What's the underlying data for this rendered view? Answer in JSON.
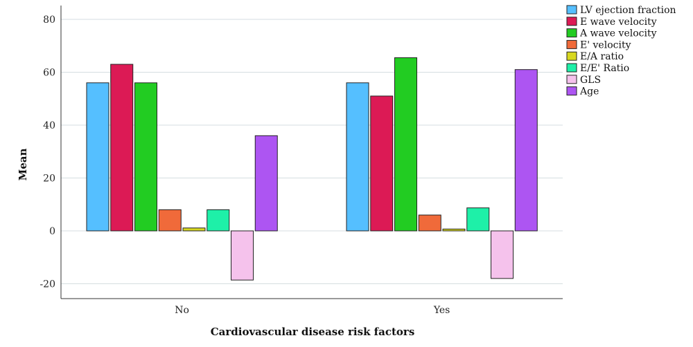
{
  "chart_data": {
    "type": "bar",
    "title": "",
    "xlabel": "Cardiovascular disease risk factors",
    "ylabel": "Mean",
    "categories": [
      "No",
      "Yes"
    ],
    "ylim": [
      -25,
      86
    ],
    "yticks": [
      -20,
      0,
      20,
      40,
      60,
      80
    ],
    "grid": true,
    "legend_position": "top-right",
    "series": [
      {
        "name": "LV ejection fraction",
        "color": "#55bfff",
        "values": [
          56,
          56
        ]
      },
      {
        "name": "E wave velocity",
        "color": "#dc1a55",
        "values": [
          63,
          51
        ]
      },
      {
        "name": "A wave velocity",
        "color": "#22cc22",
        "values": [
          56,
          65.5
        ]
      },
      {
        "name": "E' velocity",
        "color": "#f06a3a",
        "values": [
          8,
          6
        ]
      },
      {
        "name": "E/A ratio",
        "color": "#d8d820",
        "values": [
          1.1,
          0.7
        ]
      },
      {
        "name": "E/E' Ratio",
        "color": "#1ef0a8",
        "values": [
          8,
          8.7
        ]
      },
      {
        "name": "GLS",
        "color": "#f5c2ec",
        "values": [
          -18.6,
          -18
        ]
      },
      {
        "name": "Age",
        "color": "#ad55f2",
        "values": [
          36,
          61
        ]
      }
    ]
  }
}
